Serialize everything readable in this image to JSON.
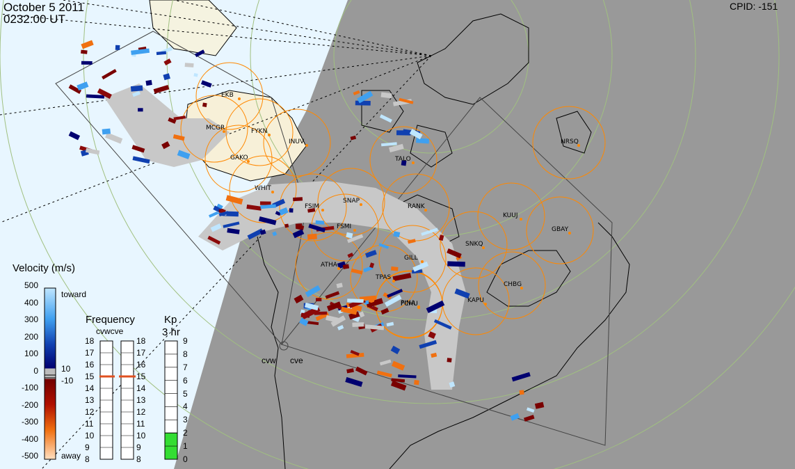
{
  "header": {
    "date": "October 5 2011",
    "time": "0232:00 UT",
    "cpid": "CPID:  -151"
  },
  "velocity_legend": {
    "title": "Velocity (m/s)",
    "toward_label": "toward",
    "away_label": "away",
    "ticks": [
      "500",
      "400",
      "300",
      "200",
      "100",
      "0",
      "-100",
      "-200",
      "-300",
      "-400",
      "-500"
    ],
    "ground_scatter_ticks": [
      "10",
      "-10"
    ]
  },
  "frequency_legend": {
    "title": "Frequency",
    "subtitle": "cvwcve",
    "ticks_left": [
      "18",
      "17",
      "16",
      "15",
      "14",
      "13",
      "12",
      "11",
      "10",
      "9",
      "8"
    ],
    "ticks_right": [
      "18",
      "17",
      "16",
      "15",
      "14",
      "13",
      "12",
      "11",
      "10",
      "9",
      "8"
    ],
    "cvw_value": 15,
    "cve_value": 15,
    "marker_color": "#e05020"
  },
  "kp_legend": {
    "title": "Kp",
    "subtitle": "3 hr",
    "ticks": [
      "9",
      "8",
      "7",
      "6",
      "5",
      "4",
      "3",
      "2",
      "1",
      "0"
    ],
    "value": 2,
    "fill_color": "#33dd33"
  },
  "radars": {
    "names": [
      "cvw",
      "cve"
    ],
    "stations": [
      {
        "name": "EKB"
      },
      {
        "name": "MCGR"
      },
      {
        "name": "FYKN"
      },
      {
        "name": "GAKO"
      },
      {
        "name": "INUV"
      },
      {
        "name": "WHIT"
      },
      {
        "name": "FSIM"
      },
      {
        "name": "SNAP"
      },
      {
        "name": "FSMI"
      },
      {
        "name": "ATHA"
      },
      {
        "name": "TPAS"
      },
      {
        "name": "GILL"
      },
      {
        "name": "RANK"
      },
      {
        "name": "TALO"
      },
      {
        "name": "FCHU"
      },
      {
        "name": "SNKQ"
      },
      {
        "name": "KUUJ"
      },
      {
        "name": "GBAY"
      },
      {
        "name": "CHBG"
      },
      {
        "name": "KAPU"
      },
      {
        "name": "PINA"
      },
      {
        "name": "NRSQ"
      }
    ]
  },
  "colors": {
    "night": "#999999",
    "day": "#e8f6ff",
    "ground_scatter": "#c8c8c8",
    "fov_circle": "#ff8800",
    "coast": "#000000",
    "grid": "#a0c080"
  }
}
